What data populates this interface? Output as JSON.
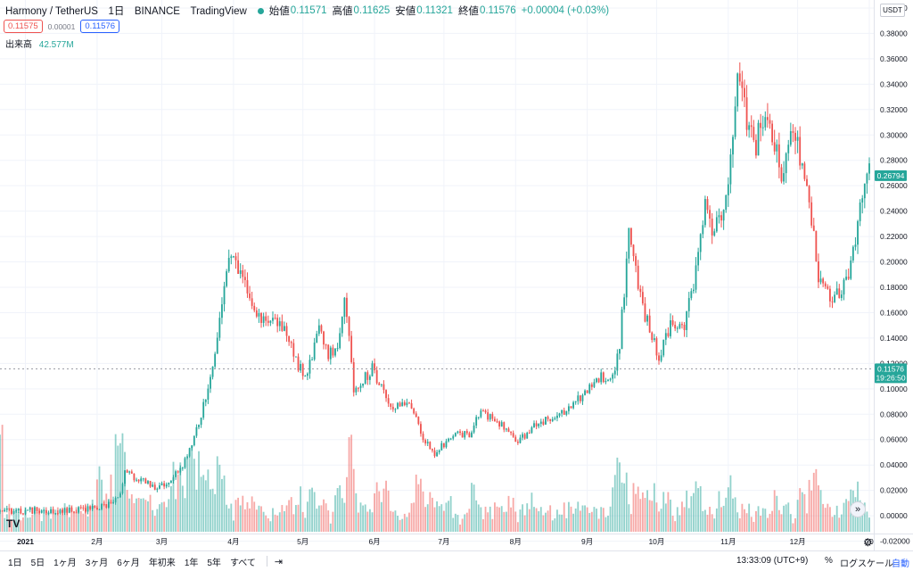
{
  "legend": {
    "title": "Harmony / TetherUS　1日　BINANCE　TradingView",
    "open_label": "始値",
    "open": "0.11571",
    "high_label": "高値",
    "high": "0.11625",
    "low_label": "安値",
    "low": "0.11321",
    "close_label": "終値",
    "close": "0.11576",
    "change": "+0.00004 (+0.03%)"
  },
  "trade": {
    "sell": "0.11575",
    "spread": "0.00001",
    "buy": "0.11576"
  },
  "volume": {
    "label": "出来高",
    "value": "42.577M"
  },
  "currency_button": "USDT",
  "logo_text": "TV",
  "scroll_icon": "»",
  "settings_icon": "⚙",
  "toolbar": {
    "timeframes": [
      "1日",
      "5日",
      "1ヶ月",
      "3ヶ月",
      "6ヶ月",
      "年初来",
      "1年",
      "5年",
      "すべて"
    ],
    "goto_icon": "⇥",
    "clock": "13:33:09 (UTC+9)",
    "percent": "%",
    "log_scale": "ログスケール",
    "auto": "自動"
  },
  "chart_data": {
    "type": "candlestick",
    "title": "",
    "y_axis": {
      "ticks": [
        "0.40000",
        "0.38000",
        "0.36000",
        "0.34000",
        "0.32000",
        "0.30000",
        "0.28000",
        "0.26000",
        "0.24000",
        "0.22000",
        "0.20000",
        "0.18000",
        "0.16000",
        "0.14000",
        "0.12000",
        "0.10000",
        "0.08000",
        "0.06000",
        "0.04000",
        "0.02000",
        "0.00000",
        "-0.02000"
      ],
      "ylim": [
        -0.0217,
        0.4063
      ]
    },
    "x_axis": {
      "labels": [
        "2021",
        "2月",
        "3月",
        "4月",
        "5月",
        "6月",
        "7月",
        "8月",
        "9月",
        "10月",
        "11月",
        "12月",
        "20"
      ],
      "dates": [
        "2021-01-01",
        "2021-02-01",
        "2021-03-01",
        "2021-04-01",
        "2021-05-01",
        "2021-06-01",
        "2021-07-01",
        "2021-08-01",
        "2021-09-01",
        "2021-10-01",
        "2021-11-01",
        "2021-12-01",
        "2022-01-01"
      ],
      "range": [
        "2020-12-21",
        "2022-01-01"
      ]
    },
    "last_price": {
      "value": 0.26794,
      "label": "0.26794",
      "color": "#26a69a"
    },
    "crosshair": {
      "value": 0.11576,
      "label": "0.11576",
      "countdown": "19:26:50",
      "color": "#26a69a"
    },
    "price_anchors": [
      [
        "2020-12-21",
        0.0035
      ],
      [
        "2021-01-15",
        0.0045
      ],
      [
        "2021-01-31",
        0.006
      ],
      [
        "2021-02-10",
        0.012
      ],
      [
        "2021-02-13",
        0.034
      ],
      [
        "2021-02-20",
        0.028
      ],
      [
        "2021-02-26",
        0.022
      ],
      [
        "2021-03-05",
        0.027
      ],
      [
        "2021-03-12",
        0.046
      ],
      [
        "2021-03-18",
        0.078
      ],
      [
        "2021-03-23",
        0.118
      ],
      [
        "2021-03-27",
        0.17
      ],
      [
        "2021-03-31",
        0.205
      ],
      [
        "2021-04-05",
        0.185
      ],
      [
        "2021-04-12",
        0.158
      ],
      [
        "2021-04-22",
        0.15
      ],
      [
        "2021-05-02",
        0.106
      ],
      [
        "2021-05-08",
        0.145
      ],
      [
        "2021-05-12",
        0.128
      ],
      [
        "2021-05-16",
        0.134
      ],
      [
        "2021-05-19",
        0.178
      ],
      [
        "2021-05-23",
        0.098
      ],
      [
        "2021-05-31",
        0.116
      ],
      [
        "2021-06-08",
        0.084
      ],
      [
        "2021-06-16",
        0.092
      ],
      [
        "2021-06-22",
        0.062
      ],
      [
        "2021-06-27",
        0.049
      ],
      [
        "2021-07-05",
        0.064
      ],
      [
        "2021-07-12",
        0.064
      ],
      [
        "2021-07-17",
        0.082
      ],
      [
        "2021-07-26",
        0.072
      ],
      [
        "2021-08-02",
        0.058
      ],
      [
        "2021-08-10",
        0.072
      ],
      [
        "2021-08-20",
        0.08
      ],
      [
        "2021-08-30",
        0.094
      ],
      [
        "2021-09-07",
        0.11
      ],
      [
        "2021-09-12",
        0.108
      ],
      [
        "2021-09-15",
        0.135
      ],
      [
        "2021-09-19",
        0.224
      ],
      [
        "2021-09-24",
        0.17
      ],
      [
        "2021-10-02",
        0.125
      ],
      [
        "2021-10-08",
        0.155
      ],
      [
        "2021-10-12",
        0.145
      ],
      [
        "2021-10-16",
        0.175
      ],
      [
        "2021-10-22",
        0.24
      ],
      [
        "2021-10-26",
        0.22
      ],
      [
        "2021-10-31",
        0.255
      ],
      [
        "2021-11-05",
        0.34
      ],
      [
        "2021-11-12",
        0.29
      ],
      [
        "2021-11-18",
        0.32
      ],
      [
        "2021-11-24",
        0.27
      ],
      [
        "2021-11-29",
        0.31
      ],
      [
        "2021-12-06",
        0.25
      ],
      [
        "2021-12-10",
        0.19
      ],
      [
        "2021-12-16",
        0.172
      ],
      [
        "2021-12-22",
        0.185
      ],
      [
        "2021-12-29",
        0.25
      ],
      [
        "2022-01-01",
        0.2679
      ]
    ],
    "volume_note": "volume histogram in lower pane, same colors as candles"
  }
}
